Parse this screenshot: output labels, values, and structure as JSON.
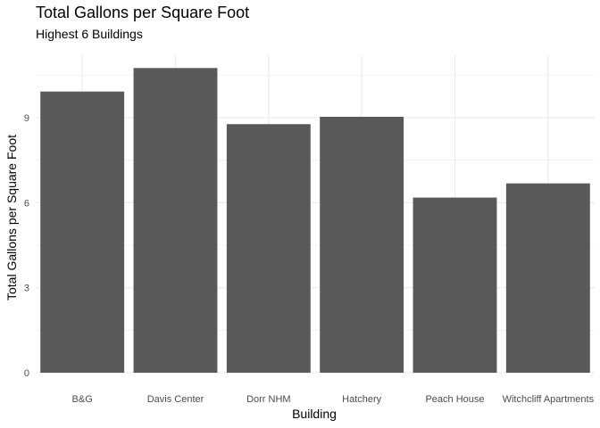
{
  "chart_data": {
    "type": "bar",
    "title": "Total Gallons per Square Foot",
    "subtitle": "Highest 6 Buildings",
    "xlabel": "Building",
    "ylabel": "Total Gallons per Square Foot",
    "categories": [
      "B&G",
      "Davis Center",
      "Dorr NHM",
      "Hatchery",
      "Peach House",
      "Witchcliff Apartments"
    ],
    "values": [
      9.92,
      10.75,
      8.77,
      9.03,
      6.18,
      6.68
    ],
    "ylim": [
      0,
      11.2
    ],
    "yticks": [
      0,
      3,
      6,
      9
    ],
    "bar_color": "#595959",
    "grid": true,
    "grid_color": "#ebebeb"
  }
}
